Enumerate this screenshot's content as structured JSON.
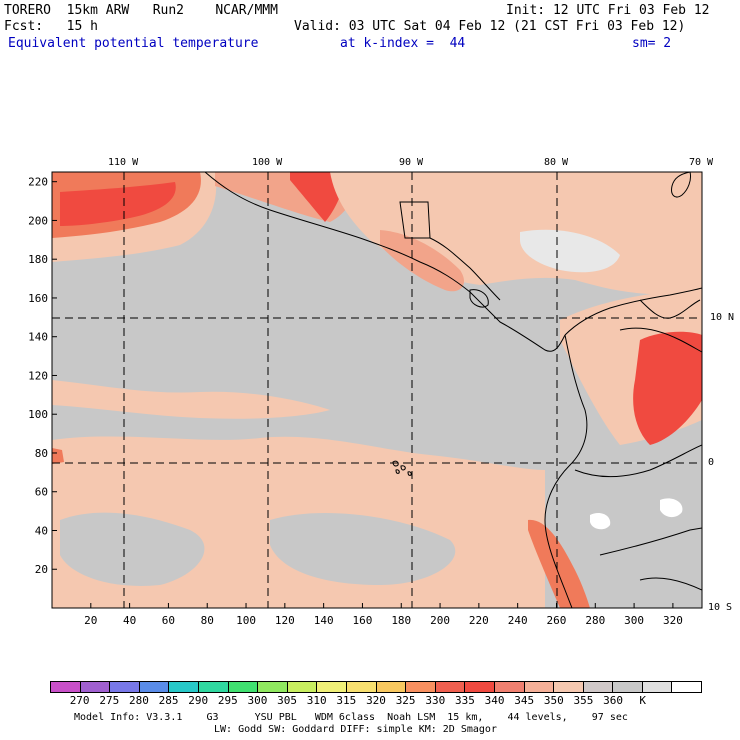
{
  "header": {
    "model": "TORERO  15km ARW   Run2    NCAR/MMM",
    "init": "Init: 12 UTC Fri 03 Feb 12",
    "fcst": "Fcst:   15 h",
    "valid": "Valid: 03 UTC Sat 04 Feb 12 (21 CST Fri 03 Feb 12)",
    "field": "Equivalent potential temperature",
    "level": "at k-index =  44",
    "smooth": "sm= 2"
  },
  "map": {
    "top_lon_labels": [
      "110 W",
      "100 W",
      "90 W",
      "80 W",
      "70 W"
    ],
    "right_lat_labels": [
      "10 N",
      "0",
      "10 S"
    ],
    "y_ticks": [
      "220",
      "200",
      "180",
      "160",
      "140",
      "120",
      "100",
      "80",
      "60",
      "40",
      "20"
    ],
    "x_ticks": [
      "20",
      "40",
      "60",
      "80",
      "100",
      "120",
      "140",
      "160",
      "180",
      "200",
      "220",
      "240",
      "260",
      "280",
      "300",
      "320"
    ],
    "colors": {
      "background": "#c8c8c8",
      "land_light": "#e8e8e8",
      "warm1": "#f5c8b0",
      "warm2": "#f2a48a",
      "warm3": "#f07a5a",
      "hot": "#f04a40",
      "white": "#ffffff"
    }
  },
  "colorbar": {
    "colors": [
      "#c850c8",
      "#a060d0",
      "#7878e8",
      "#5a8ce8",
      "#28c8c8",
      "#30d8a0",
      "#40e070",
      "#90e860",
      "#c8ee60",
      "#f0f078",
      "#f8e070",
      "#f8c860",
      "#f89060",
      "#f06050",
      "#f04a40",
      "#f08070",
      "#f5b098",
      "#f5c8b0",
      "#d0c8c8",
      "#c8c8c8",
      "#e0e0e0",
      "#ffffff"
    ],
    "labels": [
      "270",
      "275",
      "280",
      "285",
      "290",
      "295",
      "300",
      "305",
      "310",
      "315",
      "320",
      "325",
      "330",
      "335",
      "340",
      "345",
      "350",
      "355",
      "360",
      "K"
    ]
  },
  "footer": {
    "line1": "Model Info: V3.3.1    G3      YSU PBL   WDM 6class  Noah LSM  15 km,    44 levels,    97 sec",
    "line2": "LW: Godd SW: Goddard DIFF: simple KM: 2D Smagor"
  }
}
